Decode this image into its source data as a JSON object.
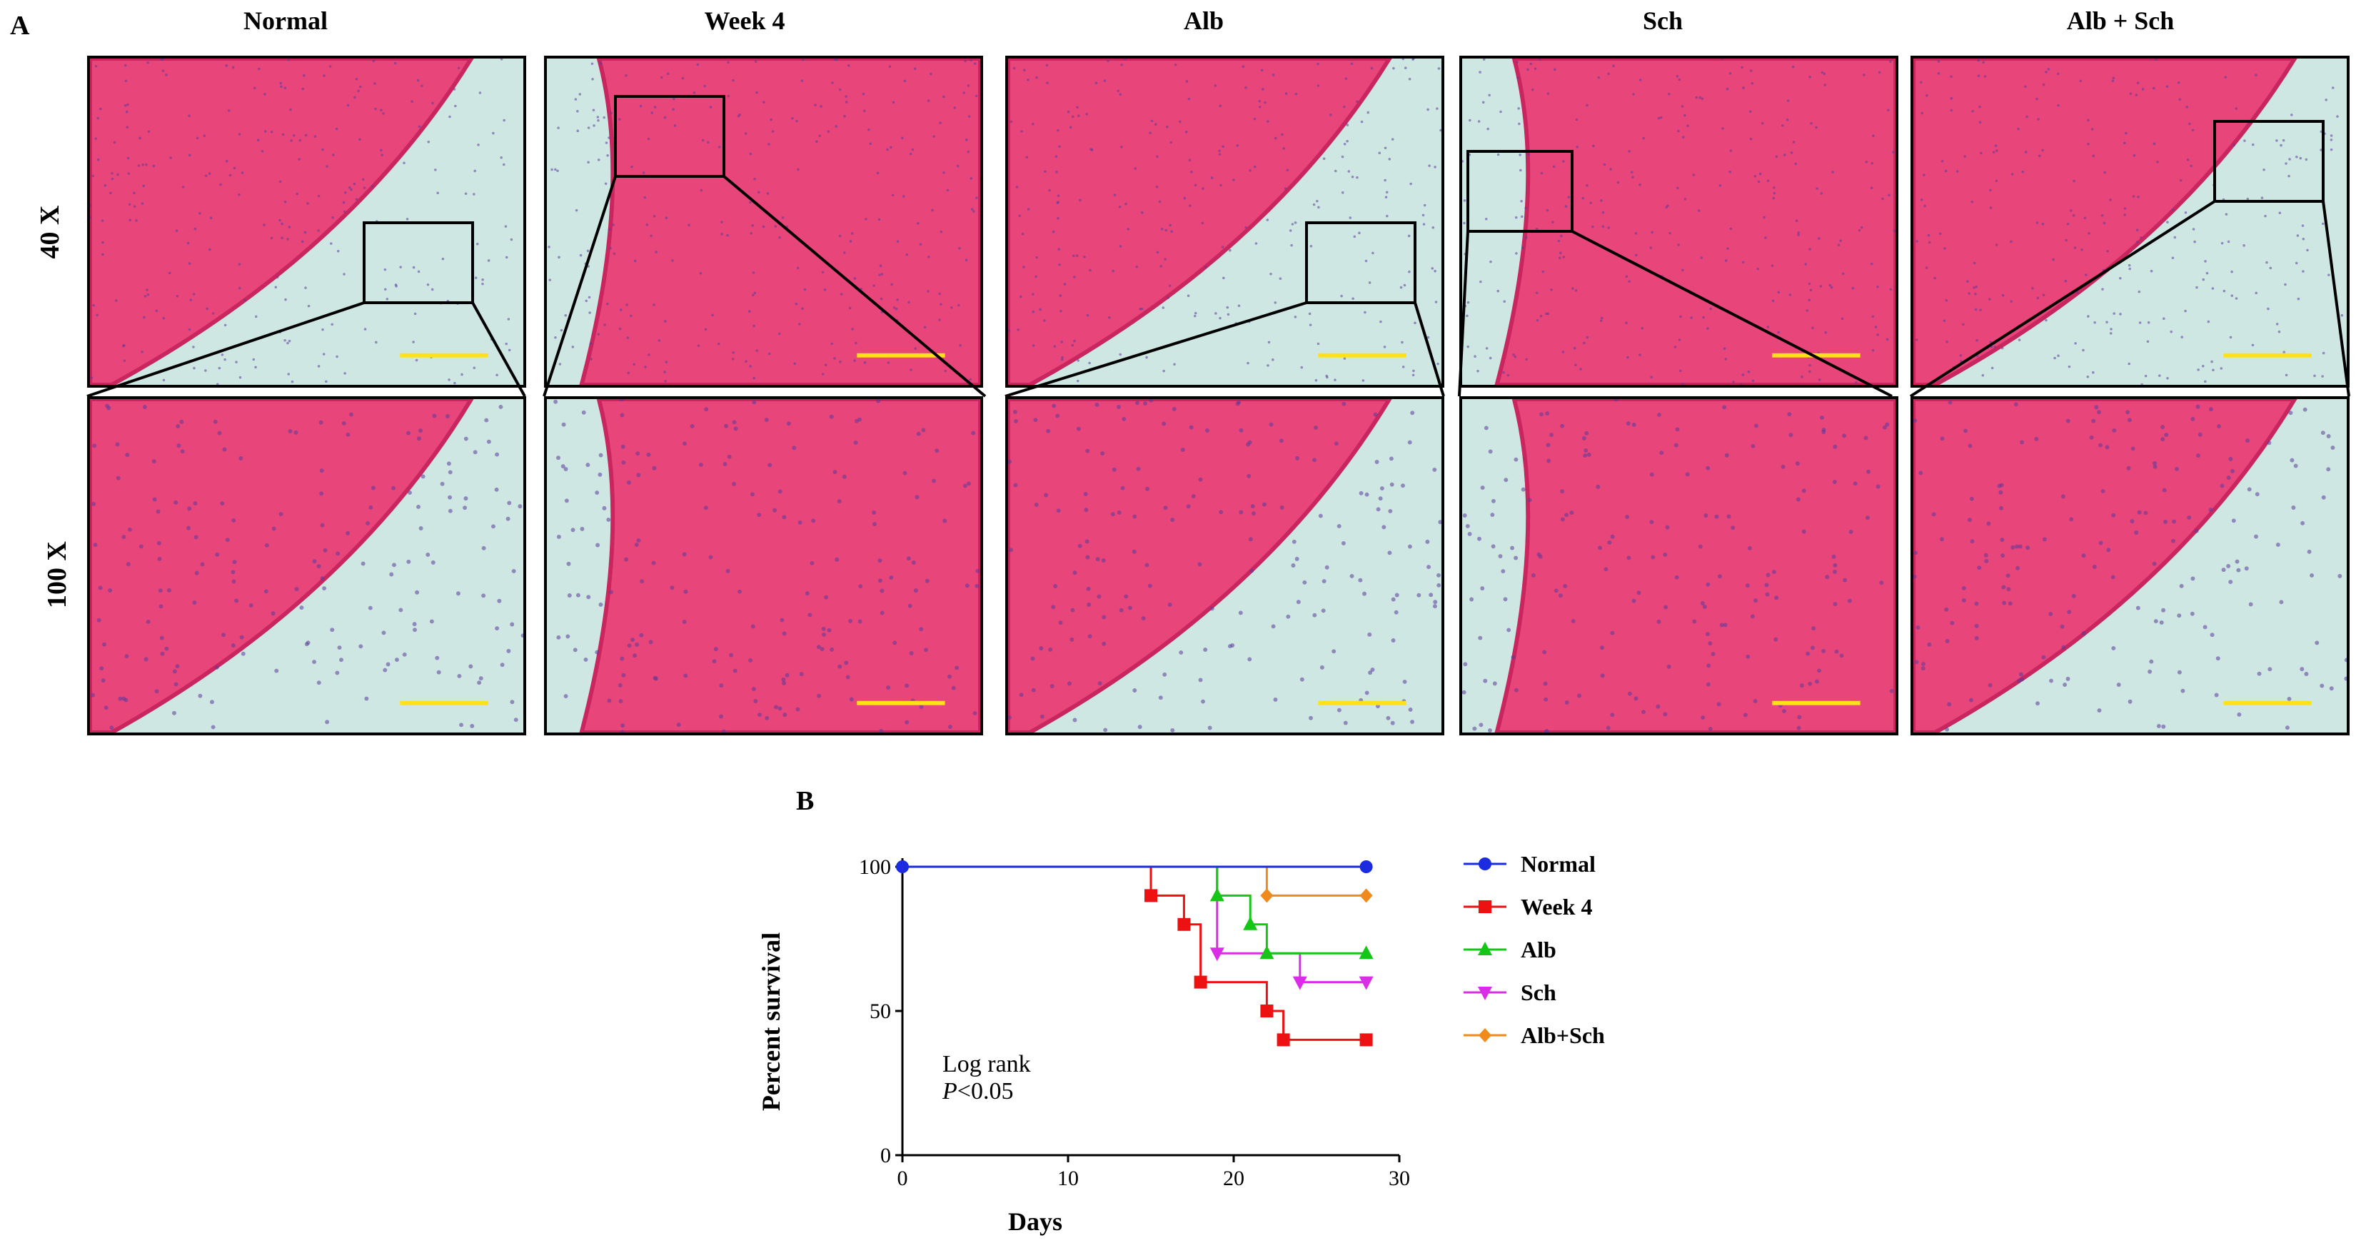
{
  "figure": {
    "panel_a_letter": "A",
    "panel_b_letter": "B",
    "columns": [
      "Normal",
      "Week 4",
      "Alb",
      "Sch",
      "Alb + Sch"
    ],
    "rows": [
      "40 X",
      "100 X"
    ],
    "colors": {
      "tissue": "#e8457a",
      "tissue_dark": "#c9255e",
      "background_slide": "#cfe7e2",
      "nuclei": "#5a3a9a",
      "scale_bar": "#ffe11a",
      "arrow_blue": "#1f3fd6",
      "arrow_black": "#000000"
    }
  },
  "chart_data": {
    "type": "line",
    "subtype": "kaplan-meier step",
    "xlabel": "Days",
    "ylabel": "Percent survival",
    "xlim": [
      0,
      30
    ],
    "ylim": [
      0,
      100
    ],
    "xticks": [
      0,
      10,
      20,
      30
    ],
    "yticks": [
      0,
      50,
      100
    ],
    "legend_position": "right",
    "annotation": {
      "line1": "Log rank",
      "line2_italic": "P",
      "line2_rest": "<0.05"
    },
    "series": [
      {
        "name": "Normal",
        "color": "#1a2be0",
        "marker": "circle",
        "steps": [
          [
            0,
            100
          ],
          [
            28,
            100
          ]
        ]
      },
      {
        "name": "Week 4",
        "color": "#ee1111",
        "marker": "square",
        "steps": [
          [
            0,
            100
          ],
          [
            15,
            90
          ],
          [
            17,
            80
          ],
          [
            18,
            60
          ],
          [
            22,
            50
          ],
          [
            23,
            40
          ],
          [
            28,
            40
          ]
        ]
      },
      {
        "name": "Alb",
        "color": "#16c616",
        "marker": "triangle-up",
        "steps": [
          [
            0,
            100
          ],
          [
            19,
            90
          ],
          [
            21,
            80
          ],
          [
            22,
            70
          ],
          [
            28,
            70
          ]
        ]
      },
      {
        "name": "Sch",
        "color": "#d92ee5",
        "marker": "triangle-down",
        "steps": [
          [
            0,
            100
          ],
          [
            19,
            70
          ],
          [
            24,
            60
          ],
          [
            28,
            60
          ]
        ]
      },
      {
        "name": "Alb+Sch",
        "color": "#f08a1c",
        "marker": "diamond",
        "steps": [
          [
            0,
            100
          ],
          [
            22,
            90
          ],
          [
            28,
            90
          ]
        ]
      }
    ]
  }
}
